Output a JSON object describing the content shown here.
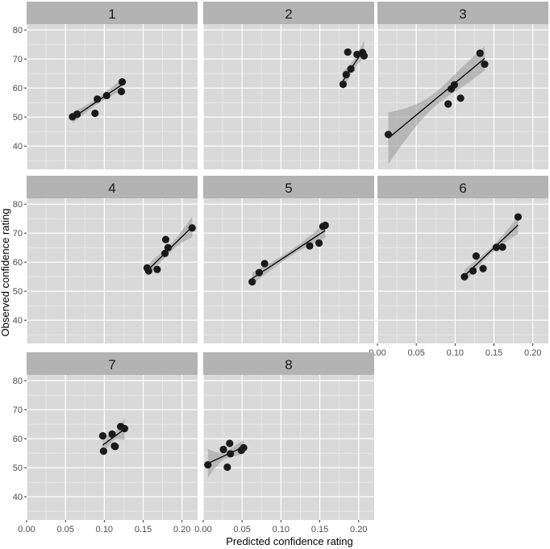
{
  "colors": {
    "panel_bg": "#d9d9d9",
    "strip_bg": "#b3b3b3",
    "grid_major": "#ffffff",
    "grid_minor": "#eeeeee",
    "point": "#1a1a1a",
    "line": "#000000",
    "ribbon": "#999999",
    "tick_text": "#4d4d4d"
  },
  "chart_data": {
    "type": "scatter",
    "facet_by": "panel",
    "xlabel": "Predicted confidence rating",
    "ylabel": "Observed confidence rating",
    "xlim": [
      0.0,
      0.22
    ],
    "ylim": [
      32,
      82
    ],
    "x_ticks": [
      0.0,
      0.05,
      0.1,
      0.15,
      0.2
    ],
    "x_tick_labels": [
      "0.00",
      "0.05",
      "0.10",
      "0.15",
      "0.20"
    ],
    "y_ticks": [
      40,
      50,
      60,
      70,
      80
    ],
    "y_tick_labels": [
      "40",
      "50",
      "60",
      "70",
      "80"
    ],
    "grid": true,
    "smooth": "linear fit with confidence band",
    "panels": [
      {
        "label": "1",
        "points": [
          [
            0.059,
            50.1
          ],
          [
            0.065,
            51.0
          ],
          [
            0.088,
            51.3
          ],
          [
            0.091,
            56.2
          ],
          [
            0.103,
            57.4
          ],
          [
            0.122,
            58.8
          ],
          [
            0.123,
            62.1
          ]
        ],
        "fit": {
          "x_range": [
            0.059,
            0.123
          ],
          "y_range": [
            49.7,
            61.2
          ],
          "se_ends": [
            1.9,
            2.1
          ],
          "se_mid": 1.0
        }
      },
      {
        "label": "2",
        "points": [
          [
            0.18,
            61.3
          ],
          [
            0.184,
            64.6
          ],
          [
            0.186,
            72.4
          ],
          [
            0.19,
            66.6
          ],
          [
            0.198,
            71.6
          ],
          [
            0.205,
            72.2
          ],
          [
            0.207,
            71.1
          ]
        ],
        "fit": {
          "x_range": [
            0.18,
            0.207
          ],
          "y_range": [
            62.6,
            73.4
          ],
          "se_ends": [
            3.2,
            3.0
          ],
          "se_mid": 1.7
        }
      },
      {
        "label": "3",
        "points": [
          [
            0.014,
            44.0
          ],
          [
            0.091,
            54.5
          ],
          [
            0.095,
            59.7
          ],
          [
            0.099,
            61.1
          ],
          [
            0.107,
            56.5
          ],
          [
            0.132,
            72.0
          ],
          [
            0.138,
            68.2
          ]
        ],
        "fit": {
          "x_range": [
            0.014,
            0.138
          ],
          "y_range": [
            42.7,
            70.2
          ],
          "se_ends": [
            8.9,
            4.1
          ],
          "se_mid": 2.3
        }
      },
      {
        "label": "4",
        "points": [
          [
            0.155,
            58.0
          ],
          [
            0.157,
            57.0
          ],
          [
            0.168,
            57.5
          ],
          [
            0.178,
            63.0
          ],
          [
            0.179,
            67.8
          ],
          [
            0.182,
            65.0
          ],
          [
            0.213,
            71.8
          ]
        ],
        "fit": {
          "x_range": [
            0.155,
            0.213
          ],
          "y_range": [
            57.0,
            72.2
          ],
          "se_ends": [
            1.8,
            3.5
          ],
          "se_mid": 1.4
        }
      },
      {
        "label": "5",
        "points": [
          [
            0.063,
            53.2
          ],
          [
            0.072,
            56.4
          ],
          [
            0.079,
            59.5
          ],
          [
            0.137,
            65.6
          ],
          [
            0.149,
            66.6
          ],
          [
            0.154,
            72.3
          ],
          [
            0.157,
            72.7
          ]
        ],
        "fit": {
          "x_range": [
            0.063,
            0.157
          ],
          "y_range": [
            54.4,
            70.9
          ],
          "se_ends": [
            2.0,
            2.5
          ],
          "se_mid": 1.0
        }
      },
      {
        "label": "6",
        "points": [
          [
            0.112,
            55.0
          ],
          [
            0.123,
            57.0
          ],
          [
            0.127,
            62.1
          ],
          [
            0.136,
            57.8
          ],
          [
            0.153,
            65.1
          ],
          [
            0.161,
            65.2
          ],
          [
            0.181,
            75.6
          ]
        ],
        "fit": {
          "x_range": [
            0.112,
            0.181
          ],
          "y_range": [
            55.3,
            72.8
          ],
          "se_ends": [
            2.2,
            3.0
          ],
          "se_mid": 1.0
        }
      },
      {
        "label": "7",
        "points": [
          [
            0.098,
            61.0
          ],
          [
            0.099,
            55.7
          ],
          [
            0.11,
            61.6
          ],
          [
            0.113,
            57.5
          ],
          [
            0.114,
            57.3
          ],
          [
            0.121,
            64.2
          ],
          [
            0.126,
            63.5
          ]
        ],
        "fit": {
          "x_range": [
            0.098,
            0.126
          ],
          "y_range": [
            57.8,
            63.3
          ],
          "se_ends": [
            3.2,
            3.8
          ],
          "se_mid": 1.2
        }
      },
      {
        "label": "8",
        "points": [
          [
            0.006,
            51.0
          ],
          [
            0.026,
            56.3
          ],
          [
            0.031,
            50.2
          ],
          [
            0.034,
            58.4
          ],
          [
            0.035,
            54.8
          ],
          [
            0.049,
            56.0
          ],
          [
            0.052,
            56.9
          ]
        ],
        "fit": {
          "x_range": [
            0.006,
            0.052
          ],
          "y_range": [
            51.5,
            57.2
          ],
          "se_ends": [
            5.0,
            2.3
          ],
          "se_mid": 1.2
        }
      }
    ]
  }
}
